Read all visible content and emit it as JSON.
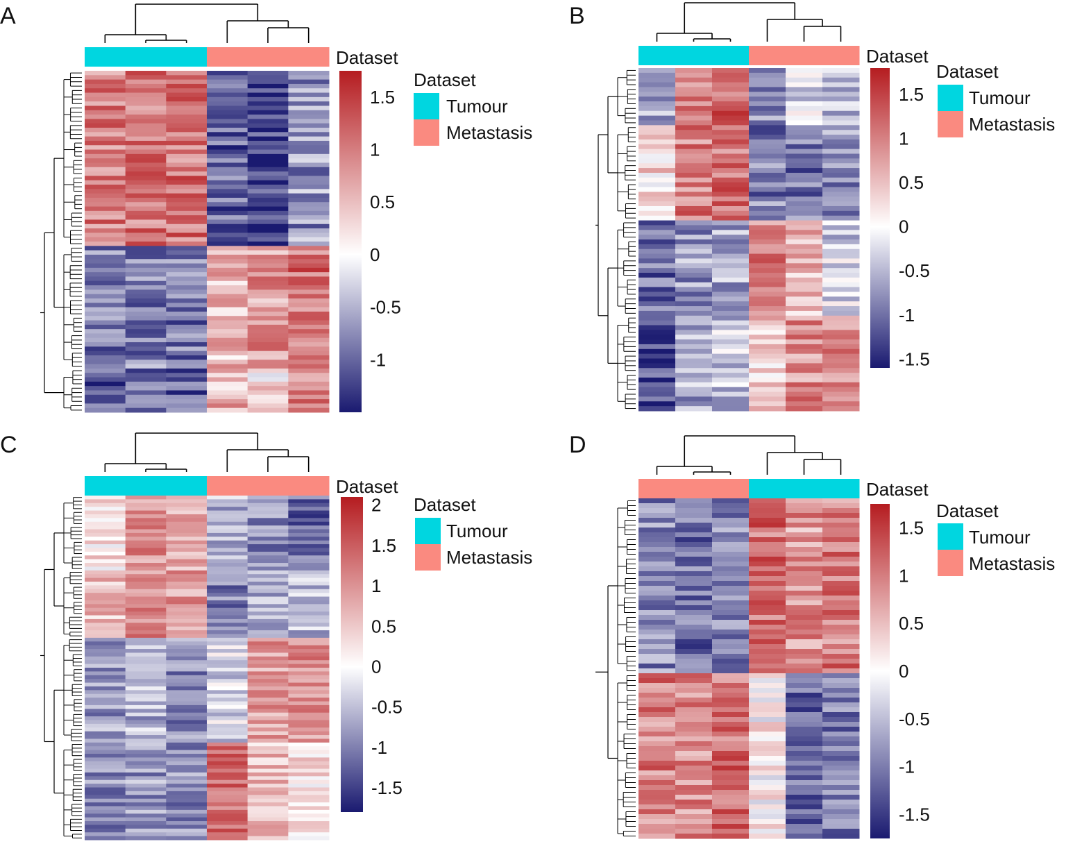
{
  "colors": {
    "tumour": "#00d6e0",
    "metastasis": "#fa8a80",
    "scale_low": "#1a1a70",
    "scale_mid": "#ffffff",
    "scale_high": "#b51c20",
    "dendrogram": "#000000"
  },
  "chart_data": [
    {
      "type": "heatmap",
      "panel_label": "A",
      "annotation_title": "Dataset",
      "legend_title": "Dataset",
      "legend": [
        "Tumour",
        "Metastasis"
      ],
      "column_groups": [
        "Tumour",
        "Tumour",
        "Tumour",
        "Metastasis",
        "Metastasis",
        "Metastasis"
      ],
      "color_scale": {
        "min": -1.5,
        "max": 1.75,
        "ticks": [
          "1.5",
          "1",
          "0.5",
          "0",
          "-0.5",
          "-1"
        ],
        "tick_values": [
          1.5,
          1,
          0.5,
          0,
          -0.5,
          -1
        ]
      },
      "row_blocks": [
        {
          "rows": 40,
          "values": [
            1.0,
            1.05,
            1.05,
            -1.0,
            -1.3,
            -0.7
          ]
        },
        {
          "rows": 28,
          "values": [
            -0.9,
            -0.8,
            -0.9,
            0.5,
            0.8,
            1.1
          ]
        },
        {
          "rows": 10,
          "values": [
            -1.0,
            -1.0,
            -1.0,
            0.6,
            0.2,
            1.0
          ]
        }
      ]
    },
    {
      "type": "heatmap",
      "panel_label": "B",
      "annotation_title": "Dataset",
      "legend_title": "Dataset",
      "legend": [
        "Tumour",
        "Metastasis"
      ],
      "column_groups": [
        "Tumour",
        "Tumour",
        "Tumour",
        "Metastasis",
        "Metastasis",
        "Metastasis"
      ],
      "color_scale": {
        "min": -1.6,
        "max": 1.8,
        "ticks": [
          "1.5",
          "1",
          "0.5",
          "0",
          "-0.5",
          "-1",
          "-1.5"
        ],
        "tick_values": [
          1.5,
          1,
          0.5,
          0,
          -0.5,
          -1,
          -1.5
        ]
      },
      "row_blocks": [
        {
          "rows": 12,
          "values": [
            -0.6,
            1.0,
            1.2,
            -0.8,
            -0.3,
            -0.4
          ]
        },
        {
          "rows": 20,
          "values": [
            0.3,
            1.0,
            1.1,
            -0.9,
            -1.0,
            -0.8
          ]
        },
        {
          "rows": 20,
          "values": [
            -1.0,
            -0.7,
            -0.6,
            1.0,
            0.6,
            -0.3
          ]
        },
        {
          "rows": 20,
          "values": [
            -1.2,
            -0.6,
            -0.4,
            0.4,
            0.9,
            1.0
          ]
        }
      ]
    },
    {
      "type": "heatmap",
      "panel_label": "C",
      "annotation_title": "Dataset",
      "legend_title": "Dataset",
      "legend": [
        "Tumour",
        "Metastasis"
      ],
      "column_groups": [
        "Tumour",
        "Tumour",
        "Tumour",
        "Metastasis",
        "Metastasis",
        "Metastasis"
      ],
      "color_scale": {
        "min": -1.8,
        "max": 2.1,
        "ticks": [
          "2",
          "1.5",
          "1",
          "0.5",
          "0",
          "-0.5",
          "-1",
          "-1.5"
        ],
        "tick_values": [
          2,
          1.5,
          1,
          0.5,
          0,
          -0.5,
          -1,
          -1.5
        ]
      },
      "row_blocks": [
        {
          "rows": 20,
          "values": [
            0.3,
            1.0,
            0.8,
            -0.6,
            -0.9,
            -1.2
          ]
        },
        {
          "rows": 18,
          "values": [
            0.6,
            1.1,
            0.9,
            -1.0,
            -0.6,
            -0.5
          ]
        },
        {
          "rows": 28,
          "values": [
            -0.8,
            -0.6,
            -0.9,
            -0.3,
            0.9,
            1.0
          ]
        },
        {
          "rows": 26,
          "values": [
            -0.9,
            -0.8,
            -0.9,
            1.3,
            0.6,
            0.3
          ]
        }
      ]
    },
    {
      "type": "heatmap",
      "panel_label": "D",
      "annotation_title": "Dataset",
      "legend_title": "Dataset",
      "legend": [
        "Tumour",
        "Metastasis"
      ],
      "column_groups": [
        "Metastasis",
        "Metastasis",
        "Metastasis",
        "Tumour",
        "Tumour",
        "Tumour"
      ],
      "color_scale": {
        "min": -1.75,
        "max": 1.75,
        "ticks": [
          "1.5",
          "1",
          "0.5",
          "0",
          "-0.5",
          "-1",
          "-1.5"
        ],
        "tick_values": [
          1.5,
          1,
          0.5,
          0,
          -0.5,
          -1,
          -1.5
        ]
      },
      "row_blocks": [
        {
          "rows": 36,
          "values": [
            -0.9,
            -1.1,
            -0.9,
            1.1,
            0.8,
            1.0
          ]
        },
        {
          "rows": 34,
          "values": [
            1.0,
            0.9,
            1.1,
            0.1,
            -1.2,
            -1.0
          ]
        }
      ]
    }
  ]
}
